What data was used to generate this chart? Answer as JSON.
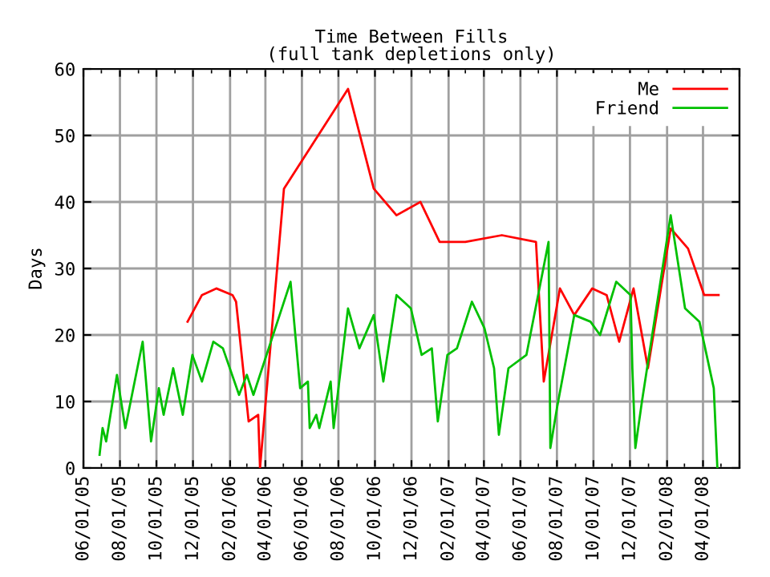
{
  "chart_data": {
    "type": "line",
    "title": "Time Between Fills",
    "subtitle": "(full tank depletions only)",
    "ylabel": "Days",
    "xlim": [
      "2005-06-01",
      "2008-06-01"
    ],
    "xticks": [
      {
        "value": "2005-06-01",
        "label": "06/01/05"
      },
      {
        "value": "2005-08-01",
        "label": "08/01/05"
      },
      {
        "value": "2005-10-01",
        "label": "10/01/05"
      },
      {
        "value": "2005-12-01",
        "label": "12/01/05"
      },
      {
        "value": "2006-02-01",
        "label": "02/01/06"
      },
      {
        "value": "2006-04-01",
        "label": "04/01/06"
      },
      {
        "value": "2006-06-01",
        "label": "06/01/06"
      },
      {
        "value": "2006-08-01",
        "label": "08/01/06"
      },
      {
        "value": "2006-10-01",
        "label": "10/01/06"
      },
      {
        "value": "2006-12-01",
        "label": "12/01/06"
      },
      {
        "value": "2007-02-01",
        "label": "02/01/07"
      },
      {
        "value": "2007-04-01",
        "label": "04/01/07"
      },
      {
        "value": "2007-06-01",
        "label": "06/01/07"
      },
      {
        "value": "2007-08-01",
        "label": "08/01/07"
      },
      {
        "value": "2007-10-01",
        "label": "10/01/07"
      },
      {
        "value": "2007-12-01",
        "label": "12/01/07"
      },
      {
        "value": "2008-02-01",
        "label": "02/01/08"
      },
      {
        "value": "2008-04-01",
        "label": "04/01/08"
      },
      {
        "value": "2008-06-01",
        "label": null
      }
    ],
    "ylim": [
      0,
      60
    ],
    "yticks": [
      0,
      10,
      20,
      30,
      40,
      50,
      60
    ],
    "grid": true,
    "legend": "top right",
    "series": [
      {
        "name": "Me",
        "color": "#ff0000",
        "x": [
          "2005-11-22",
          "2005-12-16",
          "2006-01-09",
          "2006-02-05",
          "2006-02-11",
          "2006-03-04",
          "2006-03-20",
          "2006-03-23",
          "2006-05-02",
          "2006-08-17",
          "2006-09-29",
          "2006-11-06",
          "2006-12-16",
          "2007-01-17",
          "2007-03-01",
          "2007-05-01",
          "2007-06-27",
          "2007-07-10",
          "2007-08-06",
          "2007-08-30",
          "2007-09-29",
          "2007-10-23",
          "2007-11-13",
          "2007-12-07",
          "2007-12-31",
          "2008-02-07",
          "2008-03-07",
          "2008-04-03",
          "2008-04-27"
        ],
        "values": [
          22,
          26,
          27,
          26,
          25,
          7,
          8,
          0,
          42,
          57,
          42,
          38,
          40,
          34,
          34,
          35,
          34,
          13,
          27,
          23,
          27,
          26,
          19,
          27,
          15,
          36,
          33,
          26,
          26
        ]
      },
      {
        "name": "Friend",
        "color": "#00c000",
        "x": [
          "2005-06-28",
          "2005-07-03",
          "2005-07-09",
          "2005-07-27",
          "2005-08-10",
          "2005-09-08",
          "2005-09-22",
          "2005-10-05",
          "2005-10-13",
          "2005-10-29",
          "2005-11-14",
          "2005-11-30",
          "2005-12-16",
          "2006-01-04",
          "2006-01-20",
          "2006-02-16",
          "2006-03-01",
          "2006-03-12",
          "2006-05-13",
          "2006-05-29",
          "2006-06-11",
          "2006-06-14",
          "2006-06-25",
          "2006-06-30",
          "2006-07-19",
          "2006-07-24",
          "2006-08-17",
          "2006-09-05",
          "2006-09-29",
          "2006-10-15",
          "2006-11-06",
          "2006-11-30",
          "2006-12-18",
          "2007-01-04",
          "2007-01-14",
          "2007-01-30",
          "2007-02-15",
          "2007-03-12",
          "2007-04-02",
          "2007-04-18",
          "2007-04-26",
          "2007-05-12",
          "2007-06-11",
          "2007-07-18",
          "2007-07-21",
          "2007-08-01",
          "2007-08-30",
          "2007-09-26",
          "2007-10-12",
          "2007-11-08",
          "2007-12-02",
          "2007-12-05",
          "2007-12-10",
          "2007-12-21",
          "2008-02-07",
          "2008-03-02",
          "2008-03-26",
          "2008-04-19",
          "2008-04-25"
        ],
        "values": [
          2,
          6,
          4,
          14,
          6,
          19,
          4,
          12,
          8,
          15,
          8,
          17,
          13,
          19,
          18,
          11,
          14,
          11,
          28,
          12,
          13,
          6,
          8,
          6,
          13,
          6,
          24,
          18,
          23,
          13,
          26,
          24,
          17,
          18,
          7,
          17,
          18,
          25,
          21,
          15,
          5,
          15,
          17,
          34,
          3,
          9,
          23,
          22,
          20,
          28,
          26,
          15,
          3,
          10,
          38,
          24,
          22,
          12,
          0
        ]
      }
    ]
  }
}
